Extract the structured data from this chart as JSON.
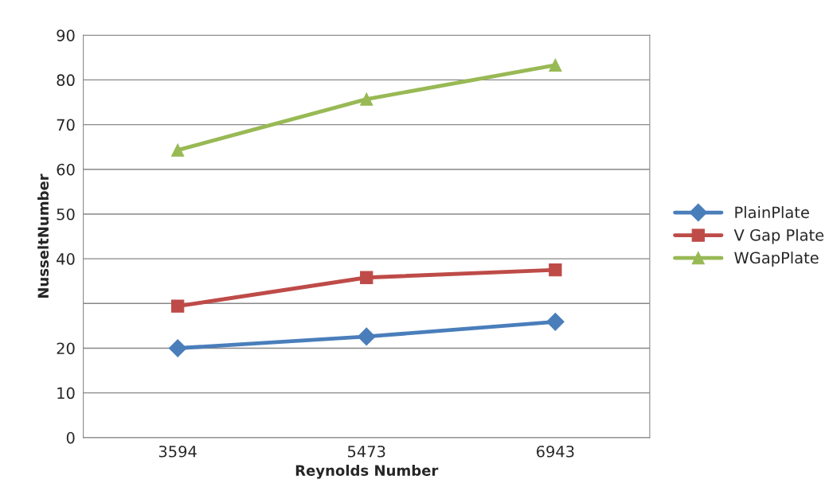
{
  "chart_data": {
    "type": "line",
    "xlabel": "Reynolds Number",
    "ylabel": "NusseltNumber",
    "categories": [
      "3594",
      "5473",
      "6943"
    ],
    "series": [
      {
        "name": "PlainPlate",
        "color": "#4a7ebb",
        "marker": "diamond",
        "values": [
          20.0,
          22.6,
          25.9
        ]
      },
      {
        "name": "V Gap Plate",
        "color": "#be4b48",
        "marker": "square",
        "values": [
          29.4,
          35.8,
          37.5
        ]
      },
      {
        "name": "WGapPlate",
        "color": "#98b954",
        "marker": "triangle",
        "values": [
          64.3,
          75.7,
          83.3
        ]
      }
    ],
    "ylim": [
      0,
      90
    ],
    "yticks": [
      0,
      10,
      20,
      {
        "value": 30,
        "label": null
      },
      40,
      50,
      60,
      70,
      80,
      90
    ],
    "grid": "y",
    "legend": "right"
  }
}
